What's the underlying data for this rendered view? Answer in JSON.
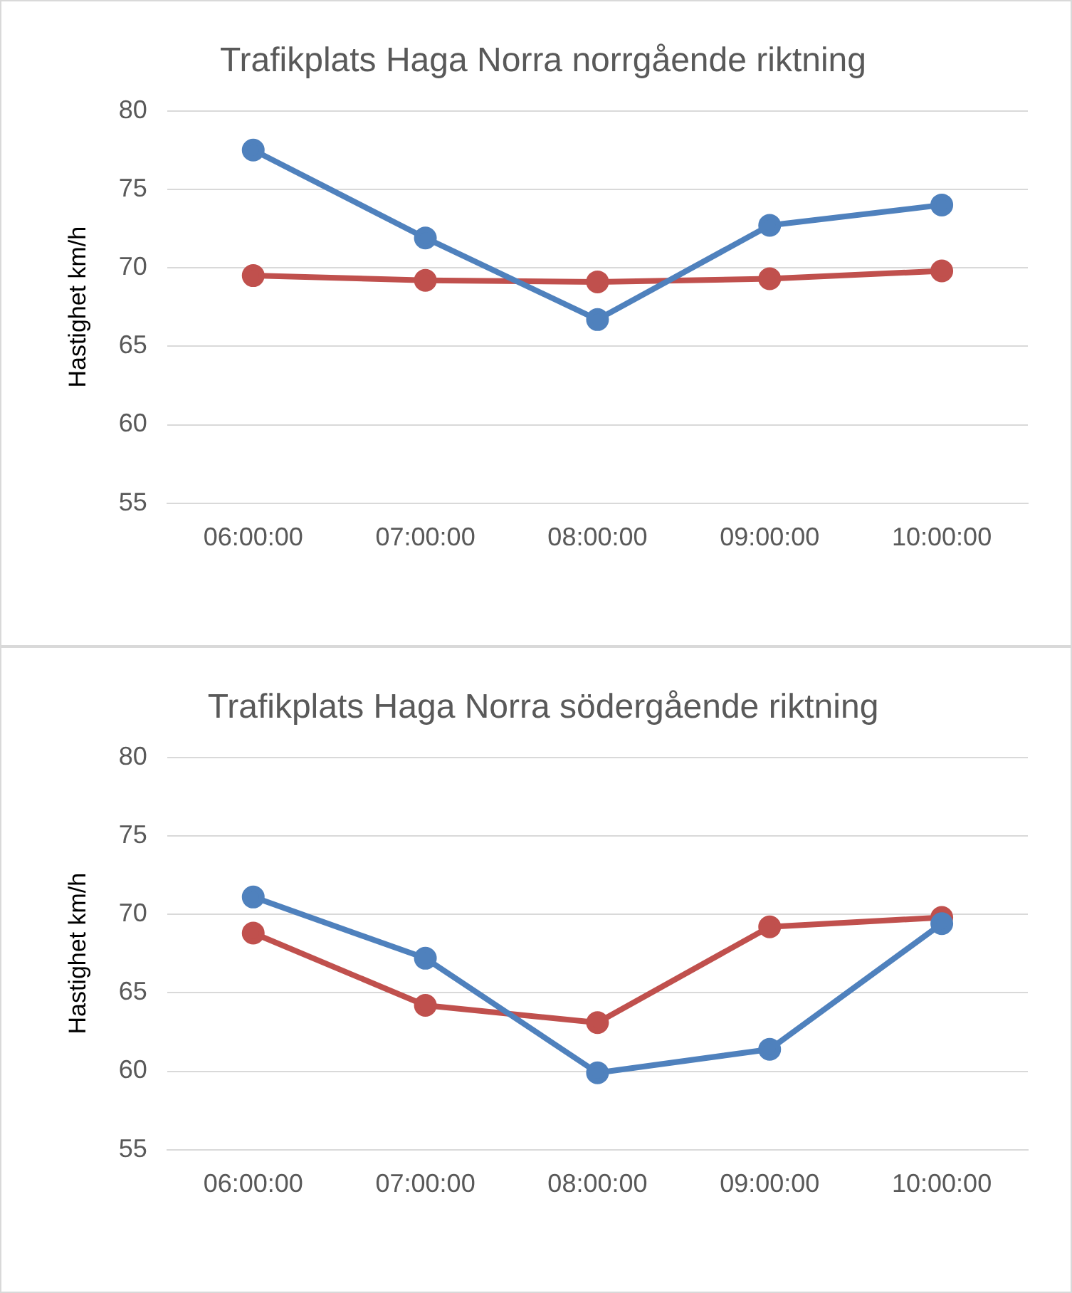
{
  "chart_data": [
    {
      "type": "line",
      "title": "Trafikplats Haga Norra norrgående riktning",
      "ylabel": "Hastighet km/h",
      "categories": [
        "06:00:00",
        "07:00:00",
        "08:00:00",
        "09:00:00",
        "10:00:00"
      ],
      "series": [
        {
          "color": "#4f81bd",
          "values": [
            77.5,
            71.9,
            66.7,
            72.7,
            74.0
          ]
        },
        {
          "color": "#c0504d",
          "values": [
            69.5,
            69.2,
            69.1,
            69.3,
            69.8
          ]
        }
      ],
      "ylim": [
        55,
        80
      ],
      "yticks": [
        55,
        60,
        65,
        70,
        75,
        80
      ],
      "grid": "y",
      "marker": "circle",
      "line_style": "solid"
    },
    {
      "type": "line",
      "title": "Trafikplats Haga Norra södergående riktning",
      "ylabel": "Hastighet km/h",
      "categories": [
        "06:00:00",
        "07:00:00",
        "08:00:00",
        "09:00:00",
        "10:00:00"
      ],
      "series": [
        {
          "color": "#4f81bd",
          "values": [
            71.1,
            67.2,
            59.9,
            61.4,
            69.4
          ]
        },
        {
          "color": "#c0504d",
          "values": [
            68.8,
            64.2,
            63.1,
            69.2,
            69.8
          ]
        }
      ],
      "ylim": [
        55,
        80
      ],
      "yticks": [
        55,
        60,
        65,
        70,
        75,
        80
      ],
      "grid": "y",
      "marker": "circle",
      "line_style": "solid"
    }
  ]
}
